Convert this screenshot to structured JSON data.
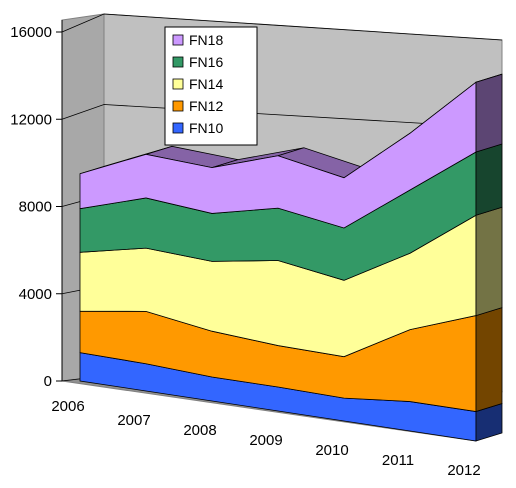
{
  "chart_data": {
    "type": "area",
    "stacked": true,
    "three_d": true,
    "categories": [
      "2006",
      "2007",
      "2008",
      "2009",
      "2010",
      "2011",
      "2012"
    ],
    "series": [
      {
        "name": "FN10",
        "values": [
          1300,
          1250,
          1100,
          1100,
          1050,
          1350,
          1350
        ]
      },
      {
        "name": "FN12",
        "values": [
          1900,
          2400,
          2100,
          1900,
          1900,
          3300,
          4400
        ]
      },
      {
        "name": "FN14",
        "values": [
          2700,
          2900,
          3200,
          3900,
          3500,
          3500,
          4600
        ]
      },
      {
        "name": "FN16",
        "values": [
          2000,
          2300,
          2200,
          2400,
          2400,
          2900,
          2900
        ]
      },
      {
        "name": "FN18",
        "values": [
          1600,
          2000,
          2100,
          2400,
          2300,
          2600,
          3200
        ]
      }
    ],
    "colors": {
      "FN10": "#3366ff",
      "FN12": "#ff9900",
      "FN14": "#ffff99",
      "FN16": "#339966",
      "FN18": "#cc99ff"
    },
    "y_ticks": [
      "0",
      "4000",
      "8000",
      "12000",
      "16000"
    ],
    "ylim": [
      0,
      16000
    ],
    "legend_position": "top-left inside plot",
    "legend_order": [
      "FN18",
      "FN16",
      "FN14",
      "FN12",
      "FN10"
    ],
    "grid": true,
    "wall_color": "#c0c0c0"
  }
}
